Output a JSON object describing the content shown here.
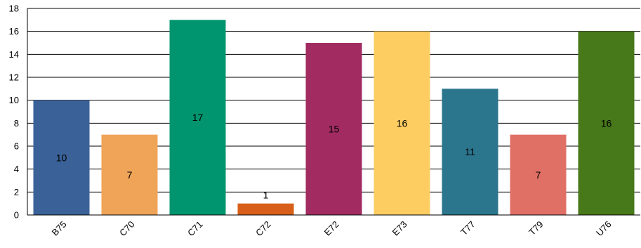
{
  "chart_data": {
    "type": "bar",
    "categories": [
      "B75",
      "C70",
      "C71",
      "C72",
      "E72",
      "E73",
      "T77",
      "T79",
      "U76"
    ],
    "values": [
      10,
      7,
      17,
      1,
      15,
      16,
      11,
      7,
      16
    ],
    "colors": [
      "#3a6298",
      "#f0a458",
      "#00956e",
      "#d85f19",
      "#a22c62",
      "#fdcd62",
      "#2b758d",
      "#e07066",
      "#47781a"
    ],
    "title": "",
    "xlabel": "",
    "ylabel": "",
    "ylim": [
      0,
      18
    ],
    "yticks": [
      0,
      2,
      4,
      6,
      8,
      10,
      12,
      14,
      16,
      18
    ],
    "grid": true,
    "legend": "none"
  }
}
